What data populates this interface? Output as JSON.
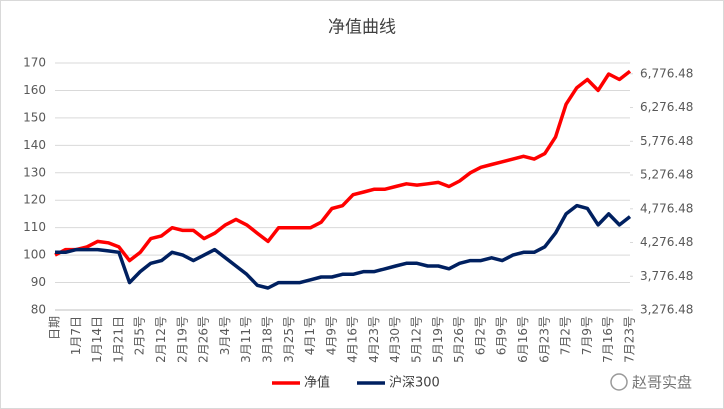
{
  "chart_data": {
    "type": "line",
    "title": "净值曲线",
    "categories": [
      "日期",
      null,
      "1月7日",
      null,
      "1月14日",
      null,
      "1月21日",
      null,
      "2月5号",
      null,
      "2月12号",
      null,
      "2月19号",
      null,
      "2月26号",
      null,
      "3月4号",
      null,
      "3月11号",
      null,
      "3月18号",
      null,
      "3月25号",
      null,
      "4月1号",
      null,
      "4月9号",
      null,
      "4月16号",
      null,
      "4月23号",
      null,
      "4月30号",
      null,
      "5月12号",
      null,
      "5月19号",
      null,
      "5月26号",
      null,
      "6月2号",
      null,
      "6月9号",
      null,
      "6月16号",
      null,
      "6月23号",
      null,
      "7月2号",
      null,
      "7月9号",
      null,
      "7月16号",
      null,
      "7月23号"
    ],
    "series": [
      {
        "name": "净值",
        "color": "#ff0000",
        "values": [
          100,
          102,
          102,
          103,
          105,
          104.5,
          103,
          98,
          101,
          106,
          107,
          110,
          109,
          109,
          106,
          108,
          111,
          113,
          111,
          108,
          105,
          110,
          110,
          110,
          110,
          112,
          117,
          118,
          122,
          123,
          124,
          124,
          125,
          126,
          125.5,
          126,
          126.5,
          125,
          127,
          130,
          132,
          133,
          134,
          135,
          136,
          135,
          137,
          143,
          155,
          161,
          164,
          160,
          166,
          164,
          167
        ]
      },
      {
        "name": "沪深300",
        "color": "#002060",
        "axis": "y2",
        "values": [
          4131,
          4131,
          4172,
          4172,
          4172,
          4152,
          4131,
          3683,
          3846,
          3968,
          4009,
          4131,
          4090,
          4009,
          4090,
          4172,
          4050,
          3928,
          3806,
          3643,
          3602,
          3683,
          3683,
          3683,
          3724,
          3765,
          3765,
          3806,
          3806,
          3846,
          3846,
          3887,
          3928,
          3968,
          3968,
          3928,
          3928,
          3887,
          3968,
          4009,
          4009,
          4050,
          4009,
          4090,
          4131,
          4131,
          4213,
          4416,
          4701,
          4823,
          4782,
          4538,
          4701,
          4538,
          4660
        ]
      }
    ],
    "ylim": [
      80,
      170
    ],
    "yticks": [
      80,
      90,
      100,
      110,
      120,
      130,
      140,
      150,
      160,
      170
    ],
    "y2lim": [
      3276.48,
      6936.48
    ],
    "y2ticks": [
      {
        "value": 3276.48,
        "label": "3,276.48"
      },
      {
        "value": 3776.48,
        "label": "3,776.48"
      },
      {
        "value": 4276.48,
        "label": "4,276.48"
      },
      {
        "value": 4776.48,
        "label": "4,776.48"
      },
      {
        "value": 5276.48,
        "label": "5,276.48"
      },
      {
        "value": 5776.48,
        "label": "5,776.48"
      },
      {
        "value": 6276.48,
        "label": "6,276.48"
      },
      {
        "value": 6776.48,
        "label": "6,776.48"
      }
    ],
    "grid": true,
    "legend": "bottom",
    "annotations": [
      "赵哥实盘"
    ]
  }
}
